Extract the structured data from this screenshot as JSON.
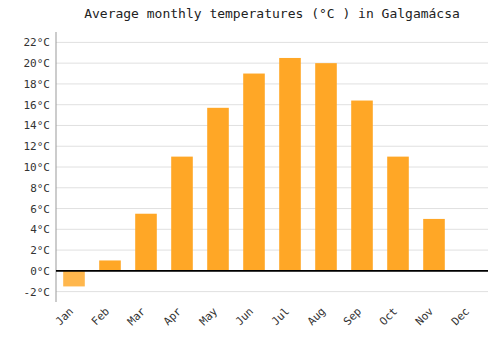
{
  "chart_data": {
    "type": "bar",
    "title": "Average monthly temperatures (°C ) in Galgamácsa",
    "categories": [
      "Jan",
      "Feb",
      "Mar",
      "Apr",
      "May",
      "Jun",
      "Jul",
      "Aug",
      "Sep",
      "Oct",
      "Nov",
      "Dec"
    ],
    "values": [
      -1.5,
      1.0,
      5.5,
      11.0,
      15.7,
      19.0,
      20.5,
      20.0,
      16.4,
      11.0,
      5.0,
      0.0
    ],
    "colors": [
      "#FFB74D",
      "#FFA726",
      "#FFA726",
      "#FFA726",
      "#FFA726",
      "#FFA726",
      "#FFA726",
      "#FFA726",
      "#FFA726",
      "#FFA726",
      "#FFA726",
      "#FFA726"
    ],
    "ylim": [
      -3,
      23
    ],
    "yticks": [
      {
        "value": -2,
        "label": "-2°C"
      },
      {
        "value": 0,
        "label": "0°C"
      },
      {
        "value": 2,
        "label": "2°C"
      },
      {
        "value": 4,
        "label": "4°C"
      },
      {
        "value": 6,
        "label": "6°C"
      },
      {
        "value": 8,
        "label": "8°C"
      },
      {
        "value": 10,
        "label": "10°C"
      },
      {
        "value": 12,
        "label": "12°C"
      },
      {
        "value": 14,
        "label": "14°C"
      },
      {
        "value": 16,
        "label": "16°C"
      },
      {
        "value": 18,
        "label": "18°C"
      },
      {
        "value": 20,
        "label": "20°C"
      },
      {
        "value": 22,
        "label": "22°C"
      }
    ],
    "grid": true
  }
}
